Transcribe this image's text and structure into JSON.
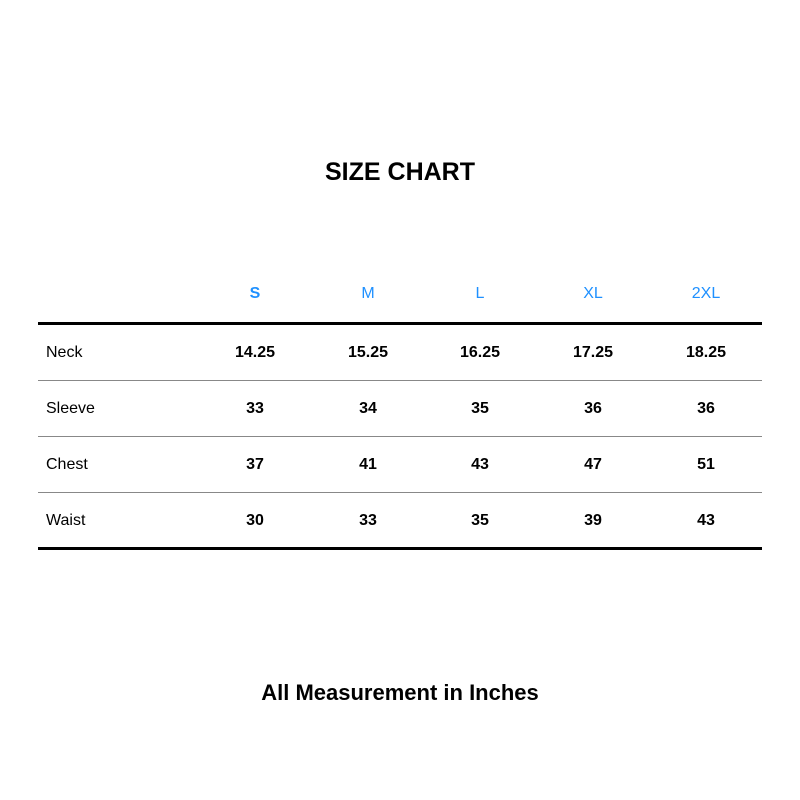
{
  "title": "SIZE CHART",
  "sizes": [
    "S",
    "M",
    "L",
    "XL",
    "2XL"
  ],
  "header_color": "#1e90ff",
  "rows": [
    {
      "label": "Neck",
      "values": [
        "14.25",
        "15.25",
        "16.25",
        "17.25",
        "18.25"
      ]
    },
    {
      "label": "Sleeve",
      "values": [
        "33",
        "34",
        "35",
        "36",
        "36"
      ]
    },
    {
      "label": "Chest",
      "values": [
        "37",
        "41",
        "43",
        "47",
        "51"
      ]
    },
    {
      "label": "Waist",
      "values": [
        "30",
        "33",
        "35",
        "39",
        "43"
      ]
    }
  ],
  "footer": "All Measurement in Inches"
}
